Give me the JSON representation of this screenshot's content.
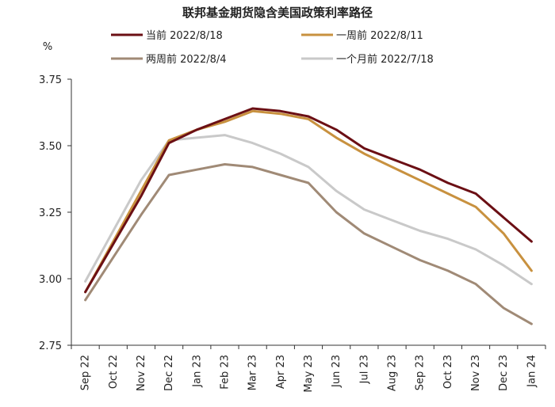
{
  "chart_data": {
    "type": "line",
    "title": "联邦基金期货隐含美国政策利率路径",
    "ylabel": "%",
    "ylim": [
      2.75,
      3.75
    ],
    "yticks": [
      "3.75",
      "3.50",
      "3.25",
      "3.00",
      "2.75"
    ],
    "grid": false,
    "legend_position": "top",
    "categories": [
      "Sep 22",
      "Oct 22",
      "Nov 22",
      "Dec 22",
      "Jan 23",
      "Feb 23",
      "Mar 23",
      "Apr 23",
      "May 23",
      "Jun 23",
      "Jul 23",
      "Aug 23",
      "Sep 23",
      "Oct 23",
      "Nov 23",
      "Dec 23",
      "Jan 24"
    ],
    "series": [
      {
        "name": "当前 2022/8/18",
        "color": "#6b0f14",
        "values": [
          2.95,
          3.13,
          3.31,
          3.51,
          3.56,
          3.6,
          3.64,
          3.63,
          3.61,
          3.56,
          3.49,
          3.45,
          3.41,
          3.36,
          3.32,
          3.23,
          3.14
        ]
      },
      {
        "name": "一周前 2022/8/11",
        "color": "#c8913f",
        "values": [
          2.95,
          3.14,
          3.33,
          3.52,
          3.56,
          3.59,
          3.63,
          3.62,
          3.6,
          3.53,
          3.47,
          3.42,
          3.37,
          3.32,
          3.27,
          3.17,
          3.03
        ]
      },
      {
        "name": "两周前 2022/8/4",
        "color": "#a08a76",
        "values": [
          2.92,
          3.08,
          3.24,
          3.39,
          3.41,
          3.43,
          3.42,
          3.39,
          3.36,
          3.25,
          3.17,
          3.12,
          3.07,
          3.03,
          2.98,
          2.89,
          2.83
        ]
      },
      {
        "name": "一个月前 2022/7/18",
        "color": "#c9c9c9",
        "values": [
          2.99,
          3.18,
          3.37,
          3.52,
          3.53,
          3.54,
          3.51,
          3.47,
          3.42,
          3.33,
          3.26,
          3.22,
          3.18,
          3.15,
          3.11,
          3.05,
          2.98
        ]
      }
    ]
  }
}
